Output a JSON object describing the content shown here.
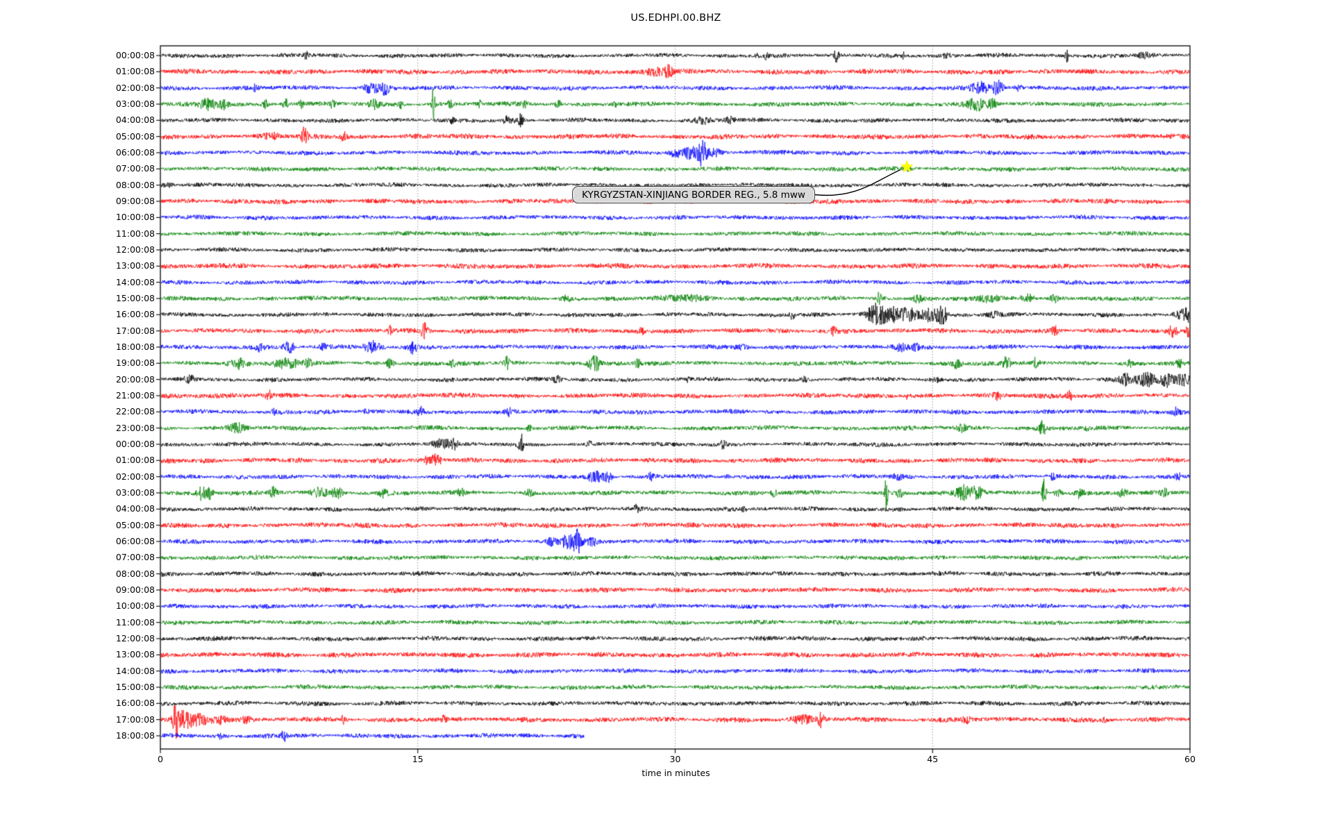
{
  "figure": {
    "title": "US.EDHPI.00.BHZ",
    "background": "#ffffff"
  },
  "chart_data": {
    "type": "line",
    "subtype": "seismogram-helicorder-dayplot",
    "title": "US.EDHPI.00.BHZ",
    "xlabel": "time in minutes",
    "xlim": [
      0,
      60
    ],
    "xticks": [
      0,
      15,
      30,
      45,
      60
    ],
    "grid": {
      "vertical_dotted_minutes": [
        15,
        30,
        45
      ],
      "color": "#8a8a8a"
    },
    "trace_color_cycle": [
      "#000000",
      "#ff0000",
      "#0000ff",
      "#008000"
    ],
    "minutes_per_row": 60,
    "annotation": {
      "text": "KYRGYZSTAN-XINJIANG BORDER REG., 5.8 mww",
      "event_region": "KYRGYZSTAN-XINJIANG BORDER REG.",
      "magnitude": "5.8 mww",
      "marker": "star",
      "marker_color": "#ffff00",
      "row_label": "07:00:08",
      "row_index": 7,
      "x_minutes": 43.5
    },
    "rows": [
      {
        "label": "00:00:08",
        "color": "#000000",
        "noise": 2.6,
        "events": [
          [
            8.5,
            0.1,
            5
          ],
          [
            34.8,
            0.07,
            4
          ],
          [
            35.3,
            0.06,
            4
          ],
          [
            39.4,
            0.09,
            10
          ],
          [
            43.3,
            0.07,
            4
          ],
          [
            45.8,
            0.25,
            3
          ],
          [
            52.8,
            0.07,
            11
          ],
          [
            57.3,
            0.4,
            3.5
          ]
        ]
      },
      {
        "label": "01:00:08",
        "color": "#ff0000",
        "noise": 3.1,
        "events": [
          [
            23.5,
            0.1,
            3
          ],
          [
            28.9,
            0.45,
            5
          ],
          [
            29.6,
            0.18,
            7
          ]
        ]
      },
      {
        "label": "02:00:08",
        "color": "#0000ff",
        "noise": 2.8,
        "events": [
          [
            5.5,
            0.12,
            3.5
          ],
          [
            12.2,
            0.3,
            6
          ],
          [
            13.0,
            0.22,
            9
          ],
          [
            47.9,
            0.45,
            7
          ],
          [
            48.8,
            0.22,
            9
          ],
          [
            50.0,
            0.15,
            4
          ]
        ]
      },
      {
        "label": "03:00:08",
        "color": "#008000",
        "noise": 2.8,
        "events": [
          [
            2.8,
            0.3,
            9
          ],
          [
            3.7,
            0.2,
            6
          ],
          [
            6.1,
            0.12,
            6
          ],
          [
            7.3,
            0.12,
            8
          ],
          [
            8.2,
            0.1,
            5
          ],
          [
            10.0,
            0.12,
            5
          ],
          [
            12.5,
            0.2,
            6
          ],
          [
            14.0,
            0.12,
            5
          ],
          [
            15.9,
            0.07,
            22
          ],
          [
            16.9,
            0.12,
            4
          ],
          [
            18.6,
            0.12,
            4
          ],
          [
            21.2,
            0.12,
            4
          ],
          [
            23.2,
            0.12,
            5
          ],
          [
            26.5,
            0.1,
            3
          ],
          [
            47.6,
            0.4,
            8
          ],
          [
            48.5,
            0.18,
            7
          ]
        ]
      },
      {
        "label": "04:00:08",
        "color": "#000000",
        "noise": 2.6,
        "events": [
          [
            17.0,
            0.1,
            3
          ],
          [
            20.3,
            0.18,
            7
          ],
          [
            21.0,
            0.1,
            10
          ],
          [
            31.6,
            0.3,
            4
          ],
          [
            33.2,
            0.2,
            4
          ]
        ]
      },
      {
        "label": "05:00:08",
        "color": "#ff0000",
        "noise": 3.1,
        "events": [
          [
            6.5,
            0.3,
            3
          ],
          [
            8.4,
            0.12,
            13
          ],
          [
            10.7,
            0.12,
            7
          ]
        ]
      },
      {
        "label": "06:00:08",
        "color": "#0000ff",
        "noise": 2.8,
        "events": [
          [
            30.0,
            0.25,
            4
          ],
          [
            31.0,
            0.4,
            8
          ],
          [
            31.6,
            0.15,
            17
          ],
          [
            32.3,
            0.3,
            6
          ]
        ]
      },
      {
        "label": "07:00:08",
        "color": "#008000",
        "noise": 2.7,
        "events": [
          [
            43.6,
            0.15,
            3
          ]
        ]
      },
      {
        "label": "08:00:08",
        "color": "#000000",
        "noise": 2.6,
        "events": [
          [
            0.4,
            0.25,
            3
          ]
        ]
      },
      {
        "label": "09:00:08",
        "color": "#ff0000",
        "noise": 3.0,
        "events": []
      },
      {
        "label": "10:00:08",
        "color": "#0000ff",
        "noise": 2.7,
        "events": []
      },
      {
        "label": "11:00:08",
        "color": "#008000",
        "noise": 2.7,
        "events": []
      },
      {
        "label": "12:00:08",
        "color": "#000000",
        "noise": 2.6,
        "events": []
      },
      {
        "label": "13:00:08",
        "color": "#ff0000",
        "noise": 3.1,
        "events": []
      },
      {
        "label": "14:00:08",
        "color": "#0000ff",
        "noise": 2.7,
        "events": []
      },
      {
        "label": "15:00:08",
        "color": "#008000",
        "noise": 2.8,
        "events": [
          [
            23.6,
            0.2,
            4
          ],
          [
            30.8,
            0.9,
            3.5
          ],
          [
            41.9,
            0.06,
            15
          ],
          [
            44.1,
            0.2,
            4
          ],
          [
            48.3,
            0.4,
            5
          ],
          [
            50.6,
            0.3,
            5
          ],
          [
            52.1,
            0.15,
            5
          ]
        ]
      },
      {
        "label": "16:00:08",
        "color": "#000000",
        "noise": 2.7,
        "events": [
          [
            36.8,
            0.12,
            5
          ],
          [
            41.7,
            0.35,
            14
          ],
          [
            42.6,
            0.4,
            10
          ],
          [
            43.6,
            0.3,
            8
          ],
          [
            44.9,
            0.45,
            9
          ],
          [
            45.6,
            0.18,
            11
          ],
          [
            48.6,
            0.25,
            4
          ],
          [
            59.5,
            0.3,
            6
          ],
          [
            60.0,
            0.2,
            8
          ]
        ]
      },
      {
        "label": "17:00:08",
        "color": "#ff0000",
        "noise": 3.0,
        "events": [
          [
            13.4,
            0.12,
            6
          ],
          [
            15.4,
            0.15,
            10
          ],
          [
            28.0,
            0.15,
            4
          ],
          [
            39.2,
            0.12,
            6
          ],
          [
            52.1,
            0.12,
            7
          ],
          [
            59.0,
            0.18,
            8
          ],
          [
            59.9,
            0.12,
            7
          ]
        ]
      },
      {
        "label": "18:00:08",
        "color": "#0000ff",
        "noise": 2.8,
        "events": [
          [
            5.8,
            0.15,
            5
          ],
          [
            7.5,
            0.22,
            8
          ],
          [
            9.5,
            0.12,
            4
          ],
          [
            12.4,
            0.35,
            8
          ],
          [
            14.7,
            0.15,
            7
          ],
          [
            33.9,
            0.25,
            3.5
          ],
          [
            43.1,
            0.3,
            5
          ],
          [
            44.0,
            0.2,
            4
          ]
        ]
      },
      {
        "label": "19:00:08",
        "color": "#008000",
        "noise": 2.8,
        "events": [
          [
            4.6,
            0.3,
            6
          ],
          [
            7.4,
            0.5,
            6
          ],
          [
            8.6,
            0.2,
            5
          ],
          [
            13.4,
            0.15,
            6
          ],
          [
            17.0,
            0.12,
            4
          ],
          [
            20.2,
            0.12,
            8
          ],
          [
            25.3,
            0.25,
            10
          ],
          [
            27.8,
            0.15,
            5
          ],
          [
            46.4,
            0.2,
            6
          ],
          [
            49.3,
            0.15,
            10
          ],
          [
            51.0,
            0.12,
            5
          ],
          [
            56.5,
            0.12,
            4
          ],
          [
            59.4,
            0.12,
            4
          ]
        ]
      },
      {
        "label": "20:00:08",
        "color": "#000000",
        "noise": 2.6,
        "events": [
          [
            1.7,
            0.18,
            5
          ],
          [
            23.1,
            0.2,
            5
          ],
          [
            30.7,
            0.12,
            4
          ],
          [
            37.5,
            0.12,
            3
          ],
          [
            45.2,
            0.1,
            3
          ],
          [
            56.3,
            0.3,
            8
          ],
          [
            57.5,
            0.4,
            9
          ],
          [
            58.7,
            0.3,
            11
          ],
          [
            59.6,
            0.25,
            9
          ]
        ]
      },
      {
        "label": "21:00:08",
        "color": "#ff0000",
        "noise": 3.0,
        "events": [
          [
            6.3,
            0.12,
            7
          ],
          [
            43.5,
            0.1,
            3
          ],
          [
            48.8,
            0.15,
            6
          ],
          [
            53.0,
            0.12,
            7
          ]
        ]
      },
      {
        "label": "22:00:08",
        "color": "#0000ff",
        "noise": 2.8,
        "events": [
          [
            6.6,
            0.1,
            5
          ],
          [
            12.0,
            0.1,
            3
          ],
          [
            15.2,
            0.12,
            6
          ],
          [
            20.3,
            0.1,
            6
          ],
          [
            59.2,
            0.12,
            6
          ]
        ]
      },
      {
        "label": "23:00:08",
        "color": "#008000",
        "noise": 2.8,
        "events": [
          [
            4.5,
            0.3,
            6
          ],
          [
            21.5,
            0.12,
            4
          ],
          [
            46.7,
            0.18,
            5
          ],
          [
            51.4,
            0.12,
            10
          ],
          [
            54.0,
            0.1,
            3
          ]
        ]
      },
      {
        "label": "00:00:08",
        "color": "#000000",
        "noise": 2.6,
        "events": [
          [
            16.4,
            0.4,
            5
          ],
          [
            17.1,
            0.15,
            6
          ],
          [
            21.0,
            0.09,
            17
          ],
          [
            25.0,
            0.12,
            3
          ],
          [
            32.8,
            0.12,
            6
          ]
        ]
      },
      {
        "label": "01:00:08",
        "color": "#ff0000",
        "noise": 3.0,
        "events": [
          [
            15.6,
            0.15,
            5
          ],
          [
            16.1,
            0.2,
            8
          ]
        ]
      },
      {
        "label": "02:00:08",
        "color": "#0000ff",
        "noise": 2.8,
        "events": [
          [
            25.4,
            0.3,
            7
          ],
          [
            26.1,
            0.15,
            6
          ],
          [
            28.6,
            0.12,
            4
          ],
          [
            33.0,
            0.1,
            3
          ],
          [
            43.0,
            0.15,
            4
          ],
          [
            52.0,
            0.12,
            4
          ],
          [
            59.3,
            0.12,
            5
          ]
        ]
      },
      {
        "label": "03:00:08",
        "color": "#008000",
        "noise": 2.8,
        "events": [
          [
            2.5,
            0.22,
            11
          ],
          [
            2.9,
            0.12,
            8
          ],
          [
            6.6,
            0.15,
            7
          ],
          [
            9.3,
            0.3,
            7
          ],
          [
            10.3,
            0.25,
            8
          ],
          [
            13.0,
            0.15,
            5
          ],
          [
            17.5,
            0.12,
            5
          ],
          [
            21.5,
            0.15,
            4
          ],
          [
            35.8,
            0.12,
            5
          ],
          [
            42.3,
            0.06,
            27
          ],
          [
            43.1,
            0.2,
            5
          ],
          [
            46.8,
            0.3,
            9
          ],
          [
            47.6,
            0.25,
            8
          ],
          [
            51.5,
            0.09,
            19
          ],
          [
            52.3,
            0.15,
            6
          ],
          [
            53.6,
            0.15,
            7
          ],
          [
            56.1,
            0.2,
            5
          ],
          [
            58.5,
            0.15,
            4
          ]
        ]
      },
      {
        "label": "04:00:08",
        "color": "#000000",
        "noise": 2.7,
        "events": [
          [
            27.7,
            0.1,
            6
          ],
          [
            34.0,
            0.12,
            3
          ]
        ]
      },
      {
        "label": "05:00:08",
        "color": "#ff0000",
        "noise": 3.0,
        "events": []
      },
      {
        "label": "06:00:08",
        "color": "#0000ff",
        "noise": 2.8,
        "events": [
          [
            22.8,
            0.2,
            4
          ],
          [
            23.8,
            0.3,
            9
          ],
          [
            24.3,
            0.13,
            19
          ],
          [
            25.1,
            0.3,
            6
          ]
        ]
      },
      {
        "label": "07:00:08",
        "color": "#008000",
        "noise": 2.7,
        "events": []
      },
      {
        "label": "08:00:08",
        "color": "#000000",
        "noise": 2.8,
        "events": []
      },
      {
        "label": "09:00:08",
        "color": "#ff0000",
        "noise": 3.0,
        "events": []
      },
      {
        "label": "10:00:08",
        "color": "#0000ff",
        "noise": 2.7,
        "events": []
      },
      {
        "label": "11:00:08",
        "color": "#008000",
        "noise": 2.7,
        "events": []
      },
      {
        "label": "12:00:08",
        "color": "#000000",
        "noise": 2.8,
        "events": []
      },
      {
        "label": "13:00:08",
        "color": "#ff0000",
        "noise": 3.1,
        "events": []
      },
      {
        "label": "14:00:08",
        "color": "#0000ff",
        "noise": 2.7,
        "events": []
      },
      {
        "label": "15:00:08",
        "color": "#008000",
        "noise": 2.7,
        "events": []
      },
      {
        "label": "16:00:08",
        "color": "#000000",
        "noise": 2.8,
        "events": []
      },
      {
        "label": "17:00:08",
        "color": "#ff0000",
        "noise": 3.0,
        "events": [
          [
            0.9,
            0.12,
            23
          ],
          [
            1.4,
            0.3,
            11
          ],
          [
            2.3,
            0.4,
            7
          ],
          [
            3.5,
            0.3,
            5
          ],
          [
            5.0,
            0.25,
            3.5
          ],
          [
            10.7,
            0.12,
            6
          ],
          [
            16.5,
            0.12,
            4
          ],
          [
            37.4,
            0.4,
            6
          ],
          [
            38.5,
            0.12,
            11
          ],
          [
            47.0,
            0.18,
            4
          ],
          [
            55.0,
            0.1,
            3
          ]
        ]
      },
      {
        "label": "18:00:08",
        "color": "#0000ff",
        "noise": 2.8,
        "end_minute": 24.7,
        "events": [
          [
            3.5,
            0.12,
            3
          ],
          [
            7.2,
            0.1,
            8
          ]
        ]
      }
    ]
  }
}
